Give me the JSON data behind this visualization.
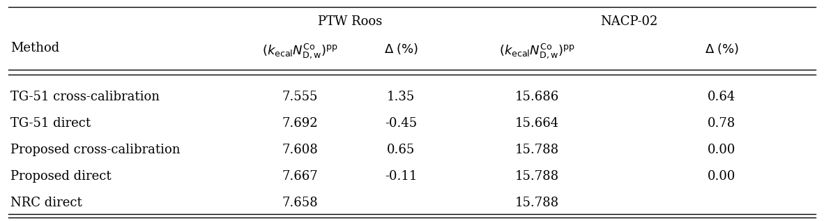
{
  "rows": [
    [
      "TG-51 cross-calibration",
      "7.555",
      "1.35",
      "15.686",
      "0.64"
    ],
    [
      "TG-51 direct",
      "7.692",
      "-0.45",
      "15.664",
      "0.78"
    ],
    [
      "Proposed cross-calibration",
      "7.608",
      "0.65",
      "15.788",
      "0.00"
    ],
    [
      "Proposed direct",
      "7.667",
      "-0.11",
      "15.788",
      "0.00"
    ],
    [
      "NRC direct",
      "7.658",
      "",
      "15.788",
      ""
    ]
  ],
  "bg_color": "#ffffff",
  "text_color": "#000000",
  "fontsize": 13.0,
  "fig_width": 11.82,
  "fig_height": 3.17,
  "dpi": 100
}
